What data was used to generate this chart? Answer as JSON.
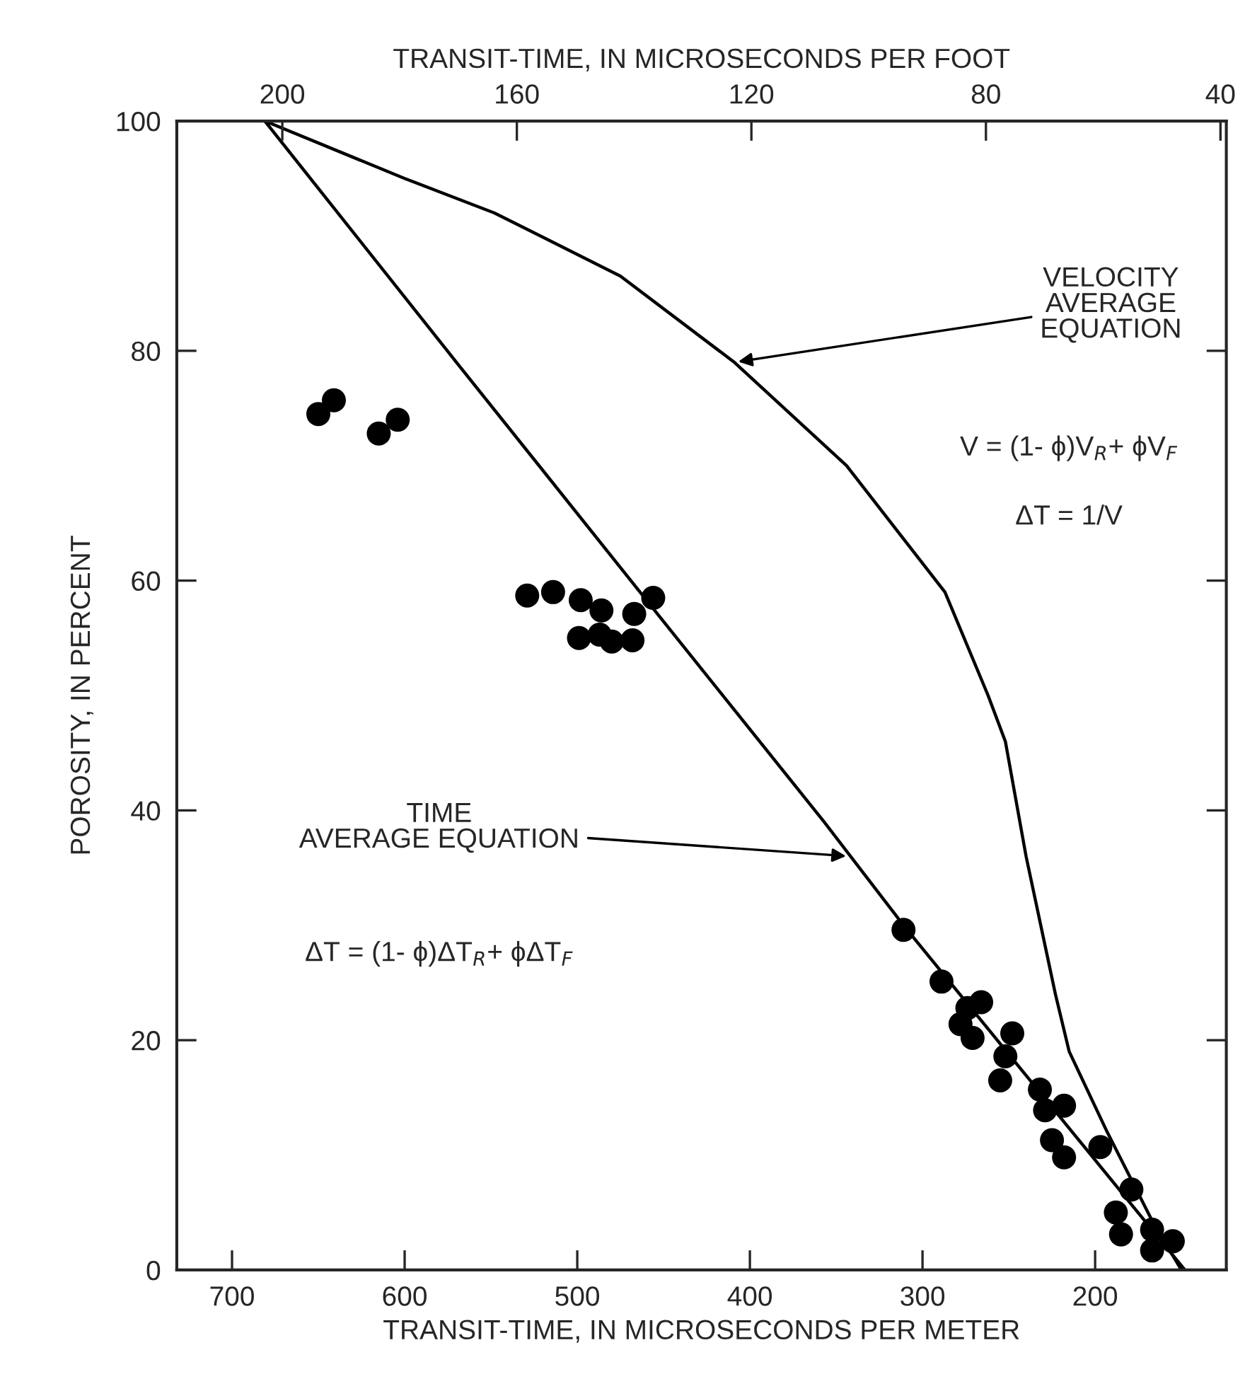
{
  "chart_data": {
    "type": "scatter",
    "xlabel": "TRANSIT-TIME, IN MICROSECONDS PER METER",
    "x2label": "TRANSIT-TIME, IN MICROSECONDS PER FOOT",
    "ylabel": "POROSITY, IN PERCENT",
    "xlim": [
      732,
      124
    ],
    "xticks": [
      700,
      600,
      500,
      400,
      300,
      200
    ],
    "x2lim": [
      218,
      39
    ],
    "x2ticks": [
      200,
      160,
      120,
      80,
      40
    ],
    "ylim": [
      0,
      100
    ],
    "yticks": [
      0,
      20,
      40,
      60,
      80,
      100
    ],
    "series": [
      {
        "type": "line",
        "color": "#000000",
        "line_style": "solid",
        "marker": "none",
        "x": [
          681,
          570,
          453,
          357,
          311,
          148
        ],
        "values": [
          100,
          79,
          57,
          39,
          30,
          0
        ]
      },
      {
        "type": "line",
        "color": "#000000",
        "line_style": "solid",
        "marker": "none",
        "x": [
          681,
          600,
          548,
          475,
          409,
          344,
          287,
          262,
          252,
          240,
          223,
          215,
          193,
          166,
          150
        ],
        "values": [
          100,
          95,
          92,
          86.5,
          79,
          70,
          59,
          50,
          46,
          36,
          24,
          19,
          12,
          4,
          0
        ]
      },
      {
        "color": "#000000",
        "marker": "circle",
        "x": [
          650,
          641,
          615,
          604,
          529,
          514,
          498,
          486,
          467,
          456,
          499,
          487,
          480,
          468,
          311,
          289,
          274,
          266,
          278,
          271,
          248,
          252,
          255,
          232,
          218,
          229,
          225,
          218,
          197,
          179,
          188,
          185,
          167,
          167,
          155
        ],
        "values": [
          74.5,
          75.7,
          72.8,
          74.0,
          58.7,
          59.0,
          58.3,
          57.4,
          57.1,
          58.5,
          55.0,
          55.3,
          54.7,
          54.8,
          29.6,
          25.1,
          22.8,
          23.3,
          21.4,
          20.2,
          20.6,
          18.6,
          16.5,
          15.7,
          14.3,
          13.9,
          11.3,
          9.8,
          10.7,
          7.0,
          5.0,
          3.1,
          3.5,
          1.7,
          2.5
        ]
      }
    ],
    "annotations": [
      {
        "text": "VELOCITY\nAVERAGE\nEQUATION",
        "x": 409,
        "y": 79
      },
      "V = (1- ϕ)V$_{R}$+ ϕV$_{F}$",
      "ΔT = 1/V",
      {
        "text": "TIME\nAVERAGE EQUATION",
        "x": 342,
        "y": 36
      },
      "ΔT = (1- ϕ)ΔT$_{R}$+ ϕΔT$_{F}$"
    ]
  }
}
